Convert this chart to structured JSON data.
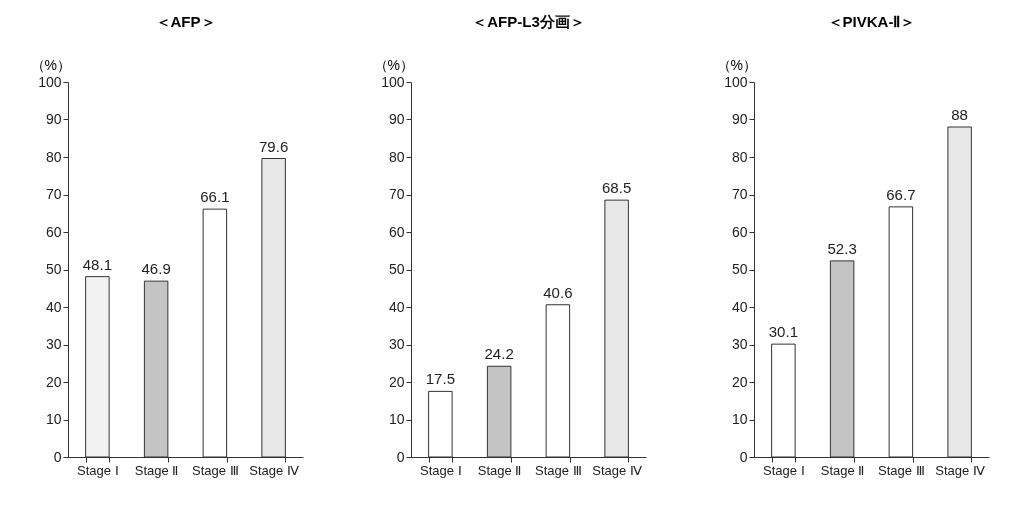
{
  "chart_data": [
    {
      "type": "bar",
      "title": "＜AFP＞",
      "ylabel": "（%）",
      "categories": [
        "Stage Ⅰ",
        "Stage Ⅱ",
        "Stage Ⅲ",
        "Stage Ⅳ"
      ],
      "values": [
        48.1,
        46.9,
        66.1,
        79.6
      ],
      "colors": [
        "#f2f2f2",
        "#c4c4c4",
        "#ffffff",
        "#e8e8e8"
      ],
      "ylim": [
        0,
        100
      ],
      "yticks": [
        0,
        10,
        20,
        30,
        40,
        50,
        60,
        70,
        80,
        90,
        100
      ],
      "data_labels": true,
      "grid": false,
      "legend": false
    },
    {
      "type": "bar",
      "title": "＜AFP-L3分画＞",
      "ylabel": "（%）",
      "categories": [
        "Stage Ⅰ",
        "Stage Ⅱ",
        "Stage Ⅲ",
        "Stage Ⅳ"
      ],
      "values": [
        17.5,
        24.2,
        40.6,
        68.5
      ],
      "colors": [
        "#ffffff",
        "#c4c4c4",
        "#ffffff",
        "#e8e8e8"
      ],
      "ylim": [
        0,
        100
      ],
      "yticks": [
        0,
        10,
        20,
        30,
        40,
        50,
        60,
        70,
        80,
        90,
        100
      ],
      "data_labels": true,
      "grid": false,
      "legend": false
    },
    {
      "type": "bar",
      "title": "＜PIVKA-Ⅱ＞",
      "ylabel": "（%）",
      "categories": [
        "Stage Ⅰ",
        "Stage Ⅱ",
        "Stage Ⅲ",
        "Stage Ⅳ"
      ],
      "values": [
        30.1,
        52.3,
        66.7,
        88
      ],
      "colors": [
        "#ffffff",
        "#c4c4c4",
        "#ffffff",
        "#e8e8e8"
      ],
      "ylim": [
        0,
        100
      ],
      "yticks": [
        0,
        10,
        20,
        30,
        40,
        50,
        60,
        70,
        80,
        90,
        100
      ],
      "data_labels": true,
      "grid": false,
      "legend": false
    }
  ]
}
